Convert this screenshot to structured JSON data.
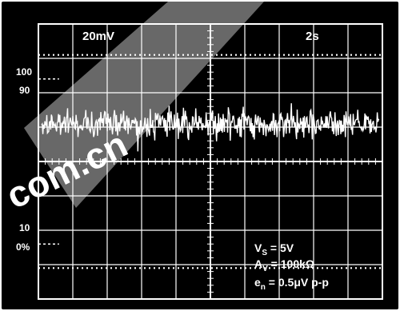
{
  "chart_data": {
    "type": "line",
    "title": "",
    "xlabel": "",
    "ylabel": "",
    "scale": {
      "vertical": "20mV",
      "horizontal": "2s"
    },
    "y_markers": [
      "100",
      "90",
      "10",
      "0%"
    ],
    "annotations": {
      "vs_label": "V",
      "vs_sub": "S",
      "vs_value": " = 5V",
      "av_label": "A",
      "av_sub": "V",
      "av_value": " = 100kΩ",
      "en_label": "e",
      "en_sub": "n",
      "en_value": " = 0.5μV p-p"
    },
    "divisions": {
      "x": 10,
      "y": 8
    },
    "trace": {
      "description_of_signal": "broadband noise",
      "center_div": 2.9,
      "amplitude_pp_div": 0.9,
      "samples": 520
    },
    "grid": true,
    "colors": {
      "background": "#000000",
      "grid": "#ffffff",
      "trace": "#ffffff"
    }
  },
  "watermark": {
    "text": "com.cn",
    "color": "#e8141e"
  }
}
